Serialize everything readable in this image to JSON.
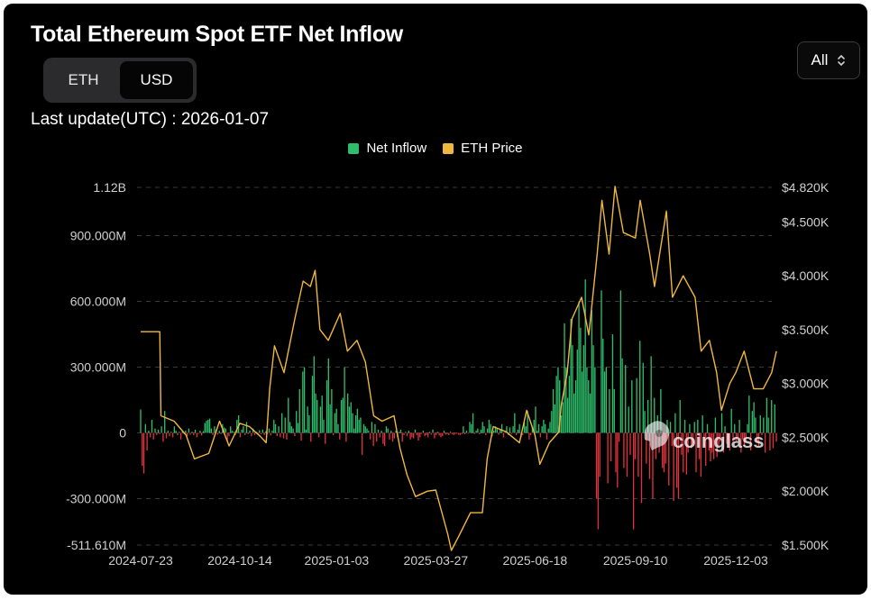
{
  "header": {
    "title": "Total Ethereum Spot ETF Net Inflow",
    "unit_options": [
      "ETH",
      "USD"
    ],
    "selected_unit": "USD",
    "range_label": "All",
    "last_update": "Last update(UTC) : 2026-01-07"
  },
  "colors": {
    "inflow_positive": "#2ebd6b",
    "inflow_negative": "#e0313e",
    "eth_price": "#f0b73f",
    "background": "#000000",
    "grid": "#3a3a3a",
    "axis_text": "#cfcfcf"
  },
  "watermark": "coinglass",
  "chart_data": {
    "type": "bar",
    "legend": [
      "Net Inflow",
      "ETH Price"
    ],
    "legend_position": "top-center",
    "grid": true,
    "x_ticks": [
      "2024-07-23",
      "2024-10-14",
      "2025-01-03",
      "2025-03-27",
      "2025-06-18",
      "2025-09-10",
      "2025-12-03"
    ],
    "y_left": {
      "ticks": [
        1120000000,
        900000000,
        600000000,
        300000000,
        0,
        -300000000,
        -511610000
      ],
      "tick_labels": [
        "1.12B",
        "900.000M",
        "600.000M",
        "300.000M",
        "0",
        "-300.000M",
        "-511.610M"
      ],
      "range": [
        -511610000,
        1120000000
      ]
    },
    "y_right": {
      "ticks": [
        4820,
        4500,
        4000,
        3500,
        3000,
        2500,
        2000,
        1500
      ],
      "tick_labels": [
        "$4.820K",
        "$4.500K",
        "$4.000K",
        "$3.500K",
        "$3.000K",
        "$2.500K",
        "$2.000K",
        "$1.500K"
      ],
      "range": [
        1500,
        4820
      ]
    },
    "series": [
      {
        "name": "Net Inflow",
        "type": "bar",
        "axis": "left",
        "start_date": "2024-07-23",
        "end_date": "2026-01-06",
        "values_usd_m": [
          107,
          -150,
          -185,
          40,
          -80,
          10,
          -20,
          60,
          -30,
          20,
          -10,
          15,
          -5,
          30,
          -40,
          100,
          -25,
          10,
          -15,
          5,
          -20,
          30,
          10,
          -10,
          5,
          -30,
          8,
          -5,
          10,
          -15,
          20,
          -8,
          5,
          -10,
          15,
          -20,
          -5,
          10,
          -12,
          8,
          45,
          55,
          60,
          65,
          20,
          -10,
          30,
          15,
          -8,
          10,
          -5,
          40,
          25,
          20,
          -40,
          -15,
          30,
          10,
          5,
          -10,
          60,
          80,
          -20,
          15,
          30,
          -10,
          50,
          -5,
          10,
          -15,
          20,
          -10,
          5,
          -8,
          12,
          -6,
          15,
          -10,
          8,
          -5,
          20,
          -12,
          10,
          60,
          40,
          -15,
          30,
          -20,
          90,
          -25,
          70,
          -30,
          160,
          50,
          30,
          20,
          -15,
          100,
          45,
          200,
          -35,
          280,
          300,
          15,
          120,
          80,
          -40,
          260,
          350,
          180,
          150,
          -20,
          120,
          170,
          60,
          -50,
          240,
          340,
          130,
          200,
          -10,
          90,
          110,
          40,
          -30,
          150,
          160,
          300,
          -40,
          180,
          120,
          140,
          90,
          20,
          80,
          110,
          60,
          70,
          -100,
          40,
          30,
          20,
          10,
          -30,
          50,
          -60,
          40,
          -40,
          15,
          -20,
          10,
          -50,
          -60,
          30,
          20,
          -30,
          10,
          -40,
          -25,
          10,
          -20,
          5,
          15,
          -40,
          -10,
          5,
          -15,
          10,
          -30,
          -20,
          -25,
          15,
          -10,
          -35,
          -20,
          -5,
          10,
          -15,
          -10,
          -20,
          5,
          -8,
          15,
          -25,
          -10,
          5,
          -12,
          -20,
          -15,
          10,
          -8,
          -5,
          -10,
          5,
          -6,
          -10,
          -5,
          -4,
          -8,
          -10,
          -5,
          30,
          -6,
          10,
          -4,
          50,
          40,
          90,
          -5,
          10,
          20,
          -6,
          15,
          50,
          30,
          -10,
          20,
          60,
          40,
          -15,
          10,
          30,
          20,
          -8,
          15,
          40,
          -20,
          10,
          30,
          -10,
          25,
          -5,
          30,
          90,
          -10,
          15,
          40,
          -20,
          -10,
          50,
          30,
          100,
          -30,
          -10,
          25,
          60,
          120,
          10,
          40,
          -20,
          30,
          60,
          40,
          -30,
          20,
          50,
          100,
          200,
          130,
          260,
          300,
          240,
          80,
          140,
          500,
          300,
          160,
          260,
          520,
          400,
          180,
          240,
          380,
          600,
          480,
          280,
          400,
          700,
          300,
          240,
          180,
          560,
          400,
          300,
          -300,
          -440,
          -200,
          650,
          430,
          280,
          300,
          -230,
          200,
          -130,
          450,
          200,
          -180,
          -250,
          -40,
          650,
          340,
          -160,
          310,
          -200,
          120,
          -100,
          240,
          -440,
          -120,
          250,
          -200,
          420,
          -320,
          320,
          100,
          -140,
          150,
          -210,
          350,
          -300,
          160,
          -120,
          80,
          -90,
          200,
          -160,
          -180,
          -140,
          60,
          -240,
          50,
          -60,
          -310,
          90,
          -250,
          -300,
          150,
          -100,
          -180,
          60,
          -190,
          -90,
          40,
          -70,
          -50,
          50,
          -180,
          60,
          -120,
          -200,
          80,
          -60,
          -150,
          40,
          -80,
          -130,
          -90,
          -120,
          70,
          -110,
          -60,
          -40,
          90,
          -90,
          30,
          -50,
          -30,
          -80,
          110,
          -40,
          40,
          -40,
          -20,
          60,
          -90,
          -30,
          -60,
          -40,
          40,
          170,
          -80,
          100,
          140,
          70,
          -40,
          -60,
          80,
          -10,
          70,
          -90,
          160,
          70,
          -80,
          150,
          -70,
          130,
          -40
        ]
      },
      {
        "name": "ETH Price",
        "type": "line",
        "axis": "right",
        "points": [
          [
            "2024-07-23",
            3480
          ],
          [
            "2024-08-08",
            3480
          ],
          [
            "2024-08-09",
            2700
          ],
          [
            "2024-08-20",
            2650
          ],
          [
            "2024-08-30",
            2520
          ],
          [
            "2024-09-06",
            2300
          ],
          [
            "2024-09-18",
            2350
          ],
          [
            "2024-09-27",
            2650
          ],
          [
            "2024-10-05",
            2420
          ],
          [
            "2024-10-14",
            2630
          ],
          [
            "2024-10-22",
            2600
          ],
          [
            "2024-10-31",
            2510
          ],
          [
            "2024-11-05",
            2450
          ],
          [
            "2024-11-08",
            2950
          ],
          [
            "2024-11-12",
            3350
          ],
          [
            "2024-11-20",
            3100
          ],
          [
            "2024-11-29",
            3600
          ],
          [
            "2024-12-06",
            3950
          ],
          [
            "2024-12-12",
            3900
          ],
          [
            "2024-12-16",
            4050
          ],
          [
            "2024-12-20",
            3500
          ],
          [
            "2024-12-27",
            3400
          ],
          [
            "2025-01-06",
            3650
          ],
          [
            "2025-01-12",
            3300
          ],
          [
            "2025-01-20",
            3400
          ],
          [
            "2025-01-27",
            3200
          ],
          [
            "2025-02-03",
            2700
          ],
          [
            "2025-02-10",
            2650
          ],
          [
            "2025-02-20",
            2700
          ],
          [
            "2025-02-25",
            2400
          ],
          [
            "2025-03-03",
            2150
          ],
          [
            "2025-03-10",
            1950
          ],
          [
            "2025-03-20",
            2000
          ],
          [
            "2025-03-27",
            2010
          ],
          [
            "2025-04-06",
            1600
          ],
          [
            "2025-04-09",
            1450
          ],
          [
            "2025-04-16",
            1600
          ],
          [
            "2025-04-25",
            1800
          ],
          [
            "2025-05-05",
            1800
          ],
          [
            "2025-05-09",
            2300
          ],
          [
            "2025-05-14",
            2600
          ],
          [
            "2025-05-25",
            2550
          ],
          [
            "2025-06-05",
            2450
          ],
          [
            "2025-06-11",
            2750
          ],
          [
            "2025-06-18",
            2520
          ],
          [
            "2025-06-22",
            2250
          ],
          [
            "2025-06-30",
            2450
          ],
          [
            "2025-07-08",
            2550
          ],
          [
            "2025-07-10",
            2800
          ],
          [
            "2025-07-15",
            3100
          ],
          [
            "2025-07-19",
            3600
          ],
          [
            "2025-07-27",
            3800
          ],
          [
            "2025-08-02",
            3450
          ],
          [
            "2025-08-09",
            4200
          ],
          [
            "2025-08-13",
            4700
          ],
          [
            "2025-08-19",
            4200
          ],
          [
            "2025-08-24",
            4830
          ],
          [
            "2025-08-31",
            4400
          ],
          [
            "2025-09-10",
            4350
          ],
          [
            "2025-09-14",
            4700
          ],
          [
            "2025-09-22",
            4200
          ],
          [
            "2025-09-26",
            3900
          ],
          [
            "2025-10-06",
            4600
          ],
          [
            "2025-10-11",
            3800
          ],
          [
            "2025-10-20",
            4000
          ],
          [
            "2025-10-30",
            3800
          ],
          [
            "2025-11-04",
            3300
          ],
          [
            "2025-11-11",
            3400
          ],
          [
            "2025-11-17",
            3100
          ],
          [
            "2025-11-21",
            2750
          ],
          [
            "2025-11-28",
            3000
          ],
          [
            "2025-12-03",
            3100
          ],
          [
            "2025-12-10",
            3300
          ],
          [
            "2025-12-18",
            2950
          ],
          [
            "2025-12-26",
            2950
          ],
          [
            "2026-01-02",
            3100
          ],
          [
            "2026-01-06",
            3300
          ]
        ]
      }
    ]
  }
}
